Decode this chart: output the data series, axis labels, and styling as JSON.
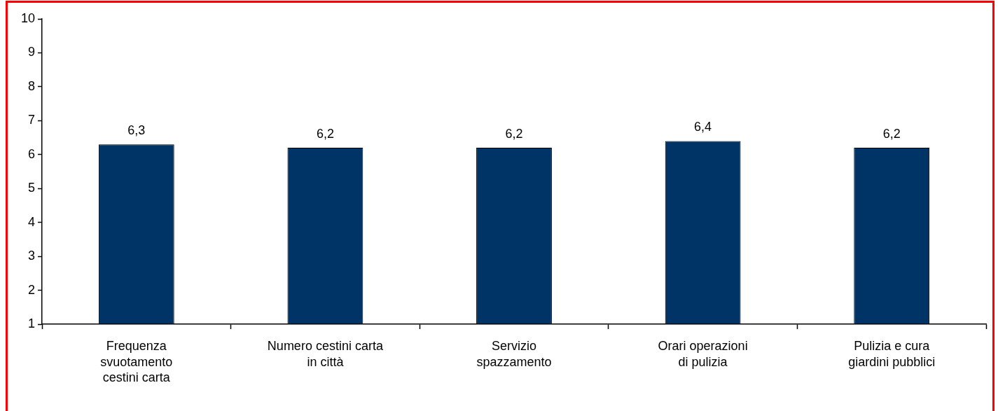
{
  "chart_data": {
    "type": "bar",
    "categories": [
      "Frequenza\nsvuotamento\ncestini carta",
      "Numero cestini carta\nin città",
      "Servizio\nspazzamento",
      "Orari operazioni\ndi pulizia",
      "Pulizia e cura\ngiardini pubblici"
    ],
    "values": [
      6.3,
      6.2,
      6.2,
      6.4,
      6.2
    ],
    "value_labels": [
      "6,3",
      "6,2",
      "6,2",
      "6,4",
      "6,2"
    ],
    "color": "#003366",
    "ylim": [
      1,
      10
    ],
    "yticks": [
      1,
      2,
      3,
      4,
      5,
      6,
      7,
      8,
      9,
      10
    ],
    "grid": false
  }
}
